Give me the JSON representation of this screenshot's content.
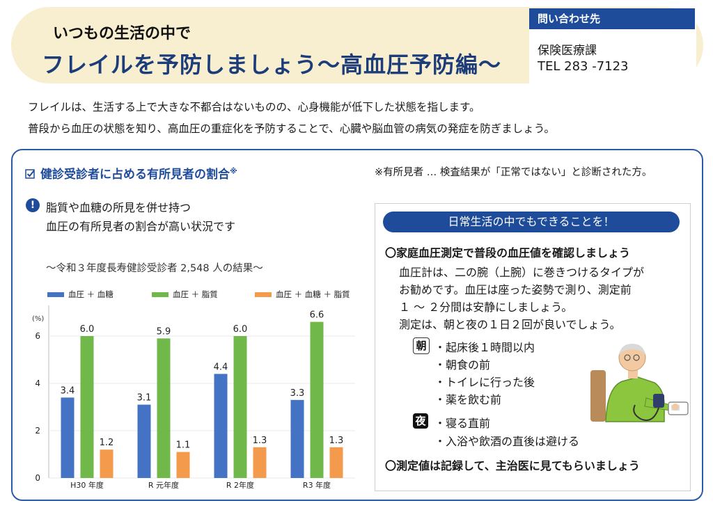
{
  "header": {
    "subtitle": "いつもの生活の中で",
    "title": "フレイルを予防しましょう～高血圧予防編～"
  },
  "contact": {
    "heading": "問い合わせ先",
    "dept": "保険医療課",
    "tel": "TEL 283 -7123"
  },
  "intro": [
    "フレイルは、生活する上で大きな不都合はないものの、心身機能が低下した状態を指します。",
    "普段から血圧の状態を知り、高血圧の重症化を予防することで、心臓や脳血管の病気の発症を防ぎましょう。"
  ],
  "section": {
    "check_icon": "checkbox-icon",
    "title": "健診受診者に占める有所見者の割合",
    "title_mark": "※",
    "note": "※有所見者 … 検査結果が「正常ではない」と診断された方。",
    "alert_icon": "exclamation-icon",
    "alert_mark": "!",
    "alert_lines": [
      "脂質や血糖の所見を併せ持つ",
      "血圧の有所見者の割合が高い状況です"
    ],
    "chart_caption": "～令和３年度長寿健診受診者 2,548 人の結果～"
  },
  "chart_data": {
    "type": "bar",
    "categories": [
      "H30 年度",
      "R 元年度",
      "R 2年度",
      "R3 年度"
    ],
    "series": [
      {
        "name": "血圧 ＋ 血糖",
        "color": "#4472c4",
        "values": [
          3.4,
          3.1,
          4.4,
          3.3
        ]
      },
      {
        "name": "血圧 ＋ 脂質",
        "color": "#70b84a",
        "values": [
          6.0,
          5.9,
          6.0,
          6.6
        ]
      },
      {
        "name": "血圧 ＋ 血糖 ＋ 脂質",
        "color": "#f39a4c",
        "values": [
          1.2,
          1.1,
          1.3,
          1.3
        ]
      }
    ],
    "labels": [
      [
        "3.4",
        "3.1",
        "4.4",
        "3.3"
      ],
      [
        "6.0",
        "5.9",
        "6.0",
        "6.6"
      ],
      [
        "1.2",
        "1.1",
        "1.3",
        "1.3"
      ]
    ],
    "ylabel": "(%)",
    "yticks": [
      "0",
      "2",
      "4",
      "6"
    ],
    "ylim": [
      0,
      7
    ],
    "legend": "top"
  },
  "tips": {
    "heading": "日常生活の中でもできることを！",
    "point1": "〇家庭血圧測定で普段の血圧値を確認しましょう",
    "body": [
      "血圧計は、二の腕（上腕）に巻きつけるタイプが",
      "お勧めです。血圧は座った姿勢で測り、測定前",
      "１ ～ ２分間は安静にしましょう。",
      "測定は、朝と夜の１日２回が良いでしょう。"
    ],
    "morning_tag": "朝",
    "morning_items": [
      "・起床後１時間以内",
      "・朝食の前",
      "・トイレに行った後",
      "・薬を飲む前"
    ],
    "night_tag": "夜",
    "night_items": [
      "・寝る直前",
      "・入浴や飲酒の直後は避ける"
    ],
    "point2": "〇測定値は記録して、主治医に見てもらいましょう",
    "illustration": "elderly-man-measuring-blood-pressure"
  }
}
